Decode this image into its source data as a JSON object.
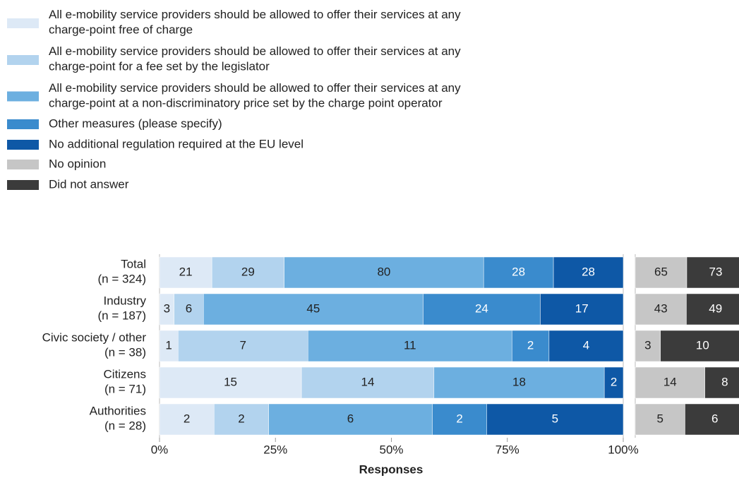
{
  "chart_data": {
    "type": "stacked-bar-horizontal-percent",
    "categories": [
      "Total\n(n = 324)",
      "Industry\n(n = 187)",
      "Civic society / other\n(n = 38)",
      "Citizens\n(n = 71)",
      "Authorities\n(n = 28)"
    ],
    "series": [
      {
        "name": "All e-mobility service providers should be allowed to offer their services at any\ncharge-point free of charge",
        "color": "#dde9f6",
        "values": [
          21,
          3,
          1,
          15,
          2
        ]
      },
      {
        "name": "All e-mobility service providers should be allowed to offer their services at any\ncharge-point for a fee set by the legislator",
        "color": "#b2d3ee",
        "values": [
          29,
          6,
          7,
          14,
          2
        ]
      },
      {
        "name": "All e-mobility service providers should be allowed to offer their services at any\ncharge-point at a non-discriminatory price set by the charge point operator",
        "color": "#6cafe0",
        "values": [
          80,
          45,
          11,
          18,
          6
        ]
      },
      {
        "name": "Other measures (please specify)",
        "color": "#3a8bcd",
        "values": [
          28,
          24,
          2,
          0,
          2
        ]
      },
      {
        "name": "No additional regulation required at the EU level",
        "color": "#0e58a6",
        "values": [
          28,
          17,
          4,
          2,
          5
        ]
      },
      {
        "name": "No opinion",
        "color": "#c6c6c6",
        "values": [
          65,
          43,
          3,
          14,
          5
        ],
        "panel": "side"
      },
      {
        "name": "Did not answer",
        "color": "#3b3b3b",
        "values": [
          73,
          49,
          10,
          8,
          6
        ],
        "panel": "side"
      }
    ],
    "xlabel": "Responses",
    "xlim": [
      0,
      100
    ],
    "xticks": [
      {
        "value": 0,
        "label": "0%"
      },
      {
        "value": 25,
        "label": "25%"
      },
      {
        "value": 50,
        "label": "50%"
      },
      {
        "value": 75,
        "label": "75%"
      },
      {
        "value": 100,
        "label": "100%"
      }
    ]
  }
}
